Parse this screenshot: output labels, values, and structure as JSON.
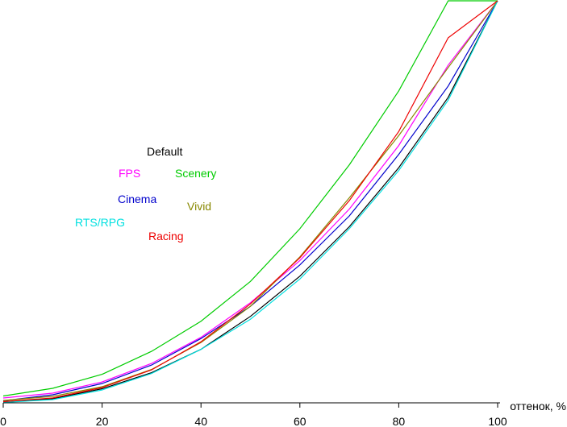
{
  "chart_data": {
    "type": "line",
    "title": "",
    "xlabel": "оттенок, %",
    "ylabel": "",
    "xlim": [
      0,
      100
    ],
    "ylim": [
      0,
      100
    ],
    "x_ticks": [
      0,
      20,
      40,
      60,
      80,
      100
    ],
    "x_tick_labels": [
      "0",
      "20",
      "40",
      "60",
      "80",
      "100"
    ],
    "grid": false,
    "x": [
      0,
      10,
      20,
      30,
      40,
      50,
      60,
      70,
      80,
      90,
      100
    ],
    "series": [
      {
        "name": "Default",
        "color": "#000000",
        "values": [
          0.2,
          1.0,
          3.5,
          7.5,
          13.3,
          21.5,
          31.5,
          43.8,
          58.5,
          76.0,
          100
        ]
      },
      {
        "name": "FPS",
        "color": "#ff00ff",
        "values": [
          1.2,
          2.4,
          5.2,
          9.8,
          16.3,
          24.9,
          35.4,
          48.2,
          64.0,
          84.0,
          100
        ]
      },
      {
        "name": "Scenery",
        "color": "#00cc00",
        "values": [
          1.7,
          3.6,
          7.1,
          12.8,
          20.3,
          30.2,
          43.3,
          59.2,
          77.6,
          100,
          100
        ]
      },
      {
        "name": "Cinema",
        "color": "#0000cc",
        "values": [
          0.5,
          2.0,
          4.8,
          9.4,
          16.0,
          24.0,
          34.3,
          46.5,
          61.8,
          78.8,
          100
        ]
      },
      {
        "name": "Vivid",
        "color": "#888800",
        "values": [
          0.6,
          1.6,
          4.0,
          8.3,
          15.0,
          24.0,
          36.3,
          51.0,
          66.5,
          83.4,
          100
        ]
      },
      {
        "name": "RTS/RPG",
        "color": "#00e0e0",
        "values": [
          0.1,
          0.8,
          3.2,
          7.3,
          13.3,
          20.8,
          30.8,
          43.3,
          57.8,
          75.3,
          100
        ]
      },
      {
        "name": "Racing",
        "color": "#ee0000",
        "values": [
          0.3,
          1.2,
          3.8,
          8.2,
          15.2,
          24.6,
          36.1,
          50.3,
          67.5,
          90.8,
          100
        ]
      }
    ],
    "legend": [
      {
        "name": "Default",
        "color": "#000000"
      },
      {
        "name": "FPS",
        "color": "#ff00ff"
      },
      {
        "name": "Scenery",
        "color": "#00cc00"
      },
      {
        "name": "Cinema",
        "color": "#0000cc"
      },
      {
        "name": "Vivid",
        "color": "#888800"
      },
      {
        "name": "RTS/RPG",
        "color": "#00e0e0"
      },
      {
        "name": "Racing",
        "color": "#ee0000"
      }
    ]
  }
}
